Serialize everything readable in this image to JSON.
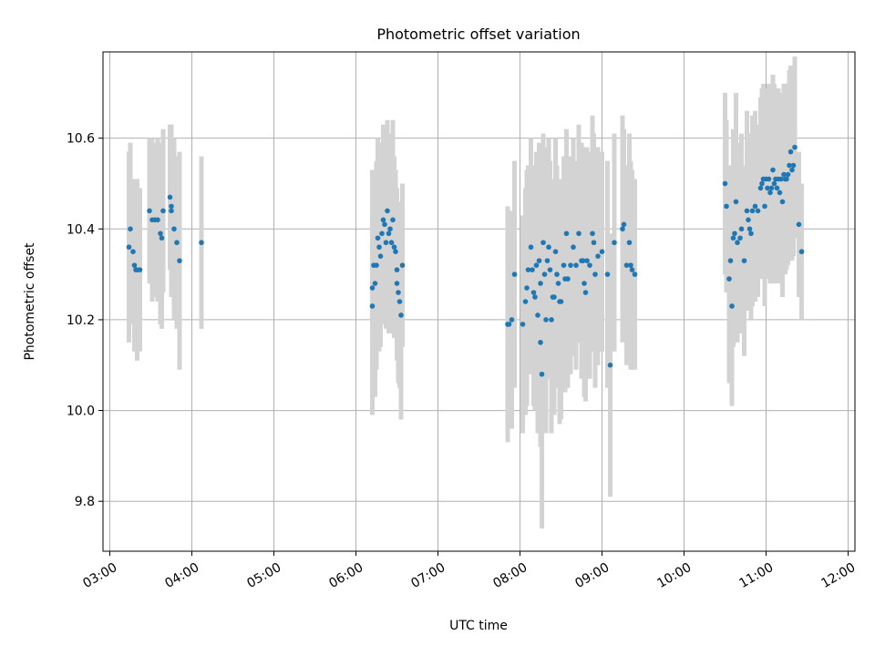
{
  "chart_data": {
    "type": "scatter",
    "title": "Photometric offset variation",
    "xlabel": "UTC time",
    "ylabel": "Photometric offset",
    "x_axis_kind": "time",
    "xlim": [
      "02:55",
      "12:05"
    ],
    "ylim": [
      9.69,
      10.79
    ],
    "grid": true,
    "legend": "none",
    "x_ticks": [
      "03:00",
      "04:00",
      "05:00",
      "06:00",
      "07:00",
      "08:00",
      "09:00",
      "10:00",
      "11:00",
      "12:00"
    ],
    "y_ticks": [
      "9.8",
      "10.0",
      "10.2",
      "10.4",
      "10.6"
    ],
    "colors": {
      "points": "#1f77b4",
      "error_bars": "#d3d3d3",
      "grid": "#b0b0b0"
    },
    "series": [
      {
        "fields": [
          "time",
          "value",
          "error"
        ],
        "points": [
          [
            "03:14",
            10.36,
            0.21
          ],
          [
            "03:15",
            10.4,
            0.19
          ],
          [
            "03:17",
            10.35,
            0.16
          ],
          [
            "03:18",
            10.32,
            0.19
          ],
          [
            "03:19",
            10.31,
            0.16
          ],
          [
            "03:20",
            10.31,
            0.2
          ],
          [
            "03:22",
            10.31,
            0.18
          ],
          [
            "03:29",
            10.44,
            0.16
          ],
          [
            "03:31",
            10.42,
            0.18
          ],
          [
            "03:33",
            10.42,
            0.17
          ],
          [
            "03:35",
            10.42,
            0.18
          ],
          [
            "03:37",
            10.39,
            0.2
          ],
          [
            "03:38",
            10.38,
            0.2
          ],
          [
            "03:39",
            10.44,
            0.18
          ],
          [
            "03:44",
            10.47,
            0.16
          ],
          [
            "03:45",
            10.45,
            0.18
          ],
          [
            "03:45",
            10.44,
            0.19
          ],
          [
            "03:47",
            10.4,
            0.2
          ],
          [
            "03:49",
            10.37,
            0.19
          ],
          [
            "03:51",
            10.33,
            0.24
          ],
          [
            "04:07",
            10.37,
            0.19
          ],
          [
            "06:12",
            10.23,
            0.24
          ],
          [
            "06:12",
            10.27,
            0.26
          ],
          [
            "06:13",
            10.32,
            0.2
          ],
          [
            "06:14",
            10.28,
            0.25
          ],
          [
            "06:15",
            10.32,
            0.23
          ],
          [
            "06:16",
            10.38,
            0.22
          ],
          [
            "06:17",
            10.36,
            0.23
          ],
          [
            "06:18",
            10.34,
            0.2
          ],
          [
            "06:19",
            10.39,
            0.2
          ],
          [
            "06:20",
            10.42,
            0.21
          ],
          [
            "06:21",
            10.41,
            0.18
          ],
          [
            "06:22",
            10.37,
            0.19
          ],
          [
            "06:23",
            10.44,
            0.2
          ],
          [
            "06:24",
            10.39,
            0.22
          ],
          [
            "06:25",
            10.4,
            0.18
          ],
          [
            "06:26",
            10.37,
            0.2
          ],
          [
            "06:27",
            10.42,
            0.22
          ],
          [
            "06:28",
            10.36,
            0.2
          ],
          [
            "06:29",
            10.35,
            0.18
          ],
          [
            "06:30",
            10.31,
            0.18
          ],
          [
            "06:30",
            10.28,
            0.17
          ],
          [
            "06:31",
            10.26,
            0.2
          ],
          [
            "06:32",
            10.24,
            0.19
          ],
          [
            "06:33",
            10.21,
            0.23
          ],
          [
            "06:34",
            10.32,
            0.18
          ],
          [
            "07:51",
            10.19,
            0.26
          ],
          [
            "07:52",
            10.19,
            0.23
          ],
          [
            "07:54",
            10.2,
            0.24
          ],
          [
            "07:56",
            10.3,
            0.25
          ],
          [
            "08:02",
            10.19,
            0.24
          ],
          [
            "08:04",
            10.24,
            0.25
          ],
          [
            "08:05",
            10.27,
            0.26
          ],
          [
            "08:06",
            10.31,
            0.23
          ],
          [
            "08:08",
            10.36,
            0.24
          ],
          [
            "08:09",
            10.31,
            0.23
          ],
          [
            "08:10",
            10.26,
            0.25
          ],
          [
            "08:11",
            10.25,
            0.25
          ],
          [
            "08:12",
            10.32,
            0.25
          ],
          [
            "08:13",
            10.21,
            0.26
          ],
          [
            "08:14",
            10.33,
            0.26
          ],
          [
            "08:15",
            10.28,
            0.27
          ],
          [
            "08:15",
            10.15,
            0.23
          ],
          [
            "08:16",
            10.08,
            0.34
          ],
          [
            "08:17",
            10.37,
            0.24
          ],
          [
            "08:18",
            10.3,
            0.25
          ],
          [
            "08:19",
            10.2,
            0.25
          ],
          [
            "08:20",
            10.33,
            0.25
          ],
          [
            "08:21",
            10.36,
            0.24
          ],
          [
            "08:22",
            10.31,
            0.24
          ],
          [
            "08:23",
            10.2,
            0.25
          ],
          [
            "08:24",
            10.25,
            0.24
          ],
          [
            "08:25",
            10.25,
            0.26
          ],
          [
            "08:26",
            10.35,
            0.25
          ],
          [
            "08:27",
            10.3,
            0.24
          ],
          [
            "08:28",
            10.28,
            0.23
          ],
          [
            "08:29",
            10.24,
            0.27
          ],
          [
            "08:30",
            10.24,
            0.26
          ],
          [
            "08:32",
            10.32,
            0.24
          ],
          [
            "08:33",
            10.29,
            0.25
          ],
          [
            "08:34",
            10.39,
            0.23
          ],
          [
            "08:35",
            10.29,
            0.24
          ],
          [
            "08:37",
            10.32,
            0.24
          ],
          [
            "08:39",
            10.36,
            0.24
          ],
          [
            "08:41",
            10.32,
            0.23
          ],
          [
            "08:43",
            10.39,
            0.24
          ],
          [
            "08:45",
            10.33,
            0.26
          ],
          [
            "08:46",
            10.33,
            0.25
          ],
          [
            "08:47",
            10.28,
            0.25
          ],
          [
            "08:48",
            10.26,
            0.24
          ],
          [
            "08:49",
            10.33,
            0.25
          ],
          [
            "08:51",
            10.32,
            0.25
          ],
          [
            "08:53",
            10.39,
            0.26
          ],
          [
            "08:54",
            10.37,
            0.24
          ],
          [
            "08:55",
            10.3,
            0.25
          ],
          [
            "08:57",
            10.34,
            0.24
          ],
          [
            "09:00",
            10.35,
            0.22
          ],
          [
            "09:04",
            10.3,
            0.25
          ],
          [
            "09:06",
            10.1,
            0.29
          ],
          [
            "09:09",
            10.37,
            0.24
          ],
          [
            "09:15",
            10.4,
            0.25
          ],
          [
            "09:16",
            10.41,
            0.21
          ],
          [
            "09:18",
            10.32,
            0.22
          ],
          [
            "09:20",
            10.37,
            0.24
          ],
          [
            "09:21",
            10.32,
            0.23
          ],
          [
            "09:22",
            10.31,
            0.22
          ],
          [
            "09:24",
            10.3,
            0.21
          ],
          [
            "10:30",
            10.5,
            0.2
          ],
          [
            "10:31",
            10.45,
            0.19
          ],
          [
            "10:33",
            10.29,
            0.23
          ],
          [
            "10:34",
            10.33,
            0.21
          ],
          [
            "10:35",
            10.23,
            0.22
          ],
          [
            "10:36",
            10.38,
            0.24
          ],
          [
            "10:37",
            10.39,
            0.2
          ],
          [
            "10:38",
            10.46,
            0.24
          ],
          [
            "10:39",
            10.37,
            0.22
          ],
          [
            "10:41",
            10.38,
            0.21
          ],
          [
            "10:42",
            10.4,
            0.21
          ],
          [
            "10:44",
            10.33,
            0.21
          ],
          [
            "10:46",
            10.44,
            0.22
          ],
          [
            "10:47",
            10.42,
            0.19
          ],
          [
            "10:48",
            10.4,
            0.18
          ],
          [
            "10:49",
            10.39,
            0.19
          ],
          [
            "10:50",
            10.44,
            0.21
          ],
          [
            "10:52",
            10.45,
            0.21
          ],
          [
            "10:54",
            10.44,
            0.19
          ],
          [
            "10:56",
            10.49,
            0.2
          ],
          [
            "10:57",
            10.5,
            0.21
          ],
          [
            "10:58",
            10.51,
            0.21
          ],
          [
            "10:59",
            10.45,
            0.22
          ],
          [
            "11:00",
            10.51,
            0.2
          ],
          [
            "11:01",
            10.49,
            0.2
          ],
          [
            "11:02",
            10.51,
            0.21
          ],
          [
            "11:03",
            10.48,
            0.2
          ],
          [
            "11:04",
            10.49,
            0.19
          ],
          [
            "11:05",
            10.53,
            0.21
          ],
          [
            "11:06",
            10.5,
            0.22
          ],
          [
            "11:07",
            10.51,
            0.19
          ],
          [
            "11:08",
            10.49,
            0.21
          ],
          [
            "11:09",
            10.51,
            0.2
          ],
          [
            "11:10",
            10.48,
            0.2
          ],
          [
            "11:11",
            10.51,
            0.19
          ],
          [
            "11:12",
            10.46,
            0.21
          ],
          [
            "11:13",
            10.52,
            0.2
          ],
          [
            "11:14",
            10.51,
            0.21
          ],
          [
            "11:15",
            10.51,
            0.2
          ],
          [
            "11:16",
            10.52,
            0.2
          ],
          [
            "11:17",
            10.54,
            0.21
          ],
          [
            "11:18",
            10.57,
            0.19
          ],
          [
            "11:19",
            10.53,
            0.2
          ],
          [
            "11:20",
            10.54,
            0.2
          ],
          [
            "11:21",
            10.58,
            0.2
          ],
          [
            "11:24",
            10.41,
            0.16
          ],
          [
            "11:26",
            10.35,
            0.15
          ]
        ]
      }
    ]
  }
}
